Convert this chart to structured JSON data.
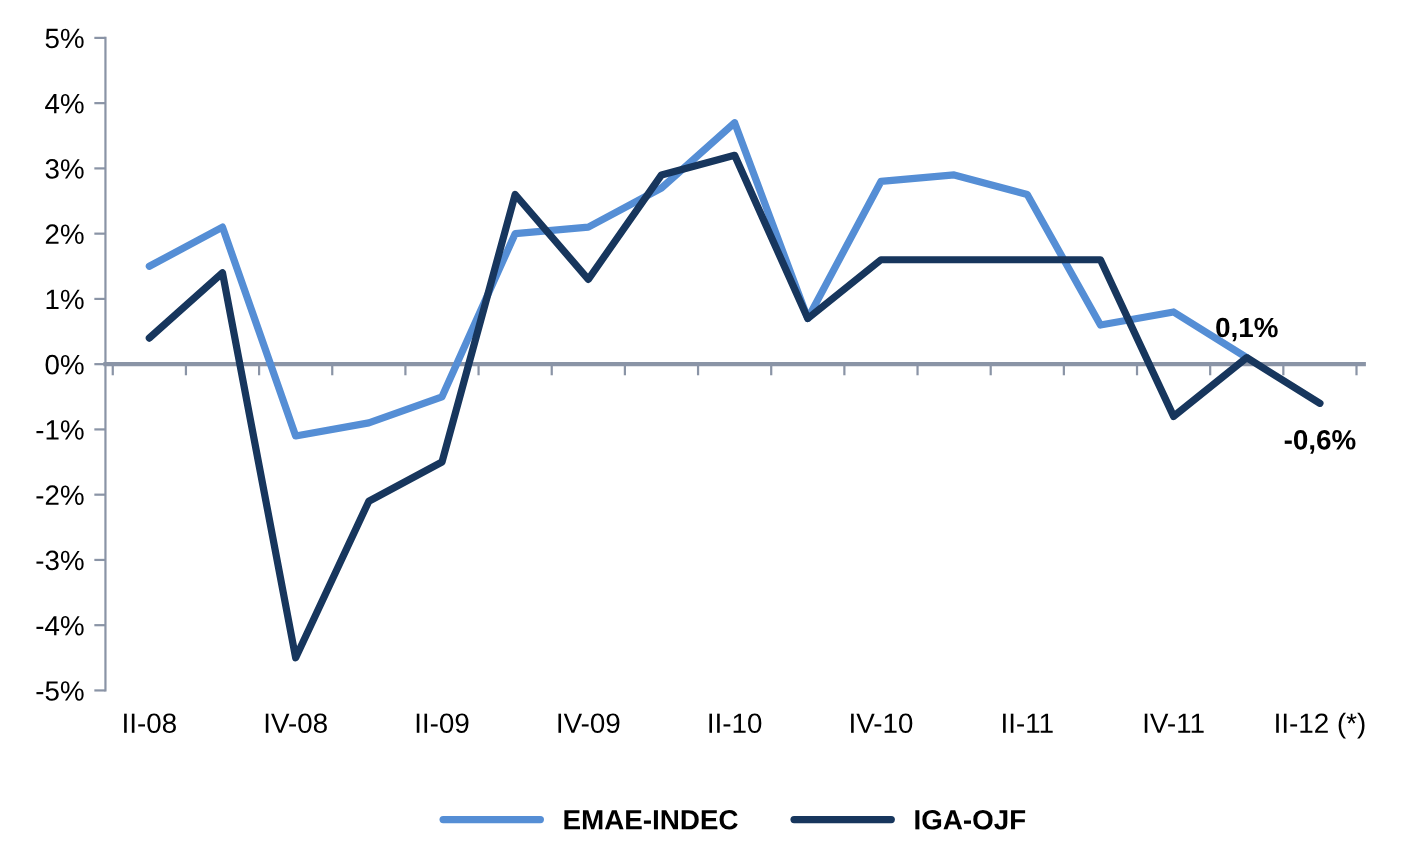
{
  "chart_data": {
    "type": "line",
    "categories": [
      "II-08",
      null,
      "IV-08",
      null,
      "II-09",
      null,
      "IV-09",
      null,
      "II-10",
      null,
      "IV-10",
      null,
      "II-11",
      null,
      "IV-11",
      null,
      "II-12 (*)"
    ],
    "series": [
      {
        "name": "EMAE-INDEC",
        "color": "#558ed5",
        "values": [
          1.5,
          2.1,
          -1.1,
          -0.9,
          -0.5,
          2.0,
          2.1,
          2.7,
          3.7,
          0.7,
          2.8,
          2.9,
          2.6,
          0.6,
          0.8,
          0.1,
          null
        ],
        "value_labels": [
          null,
          null,
          null,
          null,
          null,
          null,
          null,
          null,
          null,
          null,
          null,
          null,
          null,
          null,
          null,
          "0,1%",
          null
        ]
      },
      {
        "name": "IGA-OJF",
        "color": "#17365d",
        "values": [
          0.4,
          1.4,
          -4.5,
          -2.1,
          -1.5,
          2.6,
          1.3,
          2.9,
          3.2,
          0.7,
          1.6,
          1.6,
          1.6,
          1.6,
          -0.8,
          0.1,
          -0.6
        ],
        "value_labels": [
          null,
          null,
          null,
          null,
          null,
          null,
          null,
          null,
          null,
          null,
          null,
          null,
          null,
          null,
          null,
          null,
          "-0,6%"
        ]
      }
    ],
    "ylim": [
      -5,
      5
    ],
    "yticks": [
      {
        "value": -5,
        "label": "-5%"
      },
      {
        "value": -4,
        "label": "-4%"
      },
      {
        "value": -3,
        "label": "-3%"
      },
      {
        "value": -2,
        "label": "-2%"
      },
      {
        "value": -1,
        "label": "-1%"
      },
      {
        "value": 0,
        "label": "0%"
      },
      {
        "value": 1,
        "label": "1%"
      },
      {
        "value": 2,
        "label": "2%"
      },
      {
        "value": 3,
        "label": "3%"
      },
      {
        "value": 4,
        "label": "4%"
      },
      {
        "value": 5,
        "label": "5%"
      }
    ],
    "legend": "bottom",
    "marker": "none",
    "line_style": "solid"
  }
}
